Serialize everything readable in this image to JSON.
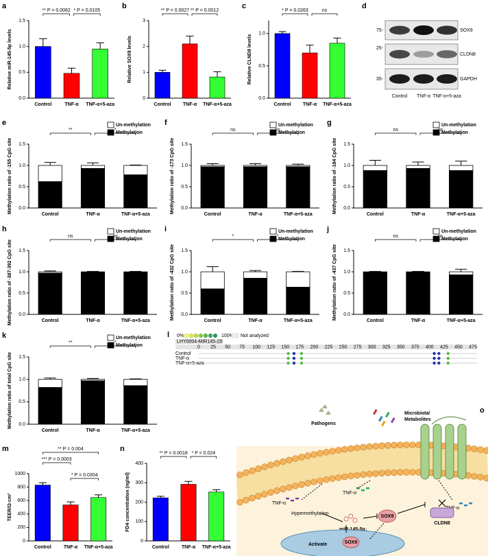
{
  "chart_data": [
    {
      "panel": "a",
      "type": "bar",
      "y_label": "Relative miR-145-5p levels",
      "categories": [
        "Control",
        "TNF-α",
        "TNF-α+5-aza"
      ],
      "values": [
        1.0,
        0.48,
        0.95
      ],
      "errors": [
        0.15,
        0.1,
        0.12
      ],
      "colors": [
        "#0000ff",
        "#ff0000",
        "#33ff33"
      ],
      "ylim": [
        0,
        1.5
      ],
      "yticks": [
        {
          "value": 0,
          "label": "0.0"
        },
        0.5,
        {
          "value": 1,
          "label": "1.0"
        },
        1.5
      ],
      "annotations": [
        "** P = 0.0062",
        "* P = 0.0105"
      ]
    },
    {
      "panel": "b",
      "type": "bar",
      "y_label": "Relative SOX9 levels",
      "categories": [
        "Control",
        "TNF-α",
        "TNF-α+5-aza"
      ],
      "values": [
        1.0,
        2.1,
        0.82
      ],
      "errors": [
        0.08,
        0.3,
        0.2
      ],
      "colors": [
        "#0000ff",
        "#ff0000",
        "#33ff33"
      ],
      "ylim": [
        0,
        3
      ],
      "yticks": [
        0,
        1,
        2,
        3
      ],
      "annotations": [
        "** P = 0.0027",
        "** P = 0.0012"
      ]
    },
    {
      "panel": "c",
      "type": "bar",
      "y_label": "Relative CLND8 levels",
      "categories": [
        "Control",
        "TNF-α",
        "TNF-α+5-aza"
      ],
      "values": [
        1.0,
        0.7,
        0.85
      ],
      "errors": [
        0.03,
        0.12,
        0.08
      ],
      "colors": [
        "#0000ff",
        "#ff0000",
        "#33ff33"
      ],
      "ylim": [
        0,
        1.2
      ],
      "yticks": [
        {
          "value": 0,
          "label": "0.0"
        },
        0.5,
        {
          "value": 1,
          "label": "1.0"
        }
      ],
      "annotations": [
        "* P = 0.0263",
        "ns"
      ]
    },
    {
      "panel": "e",
      "type": "stacked_bar",
      "y_label": "Methylation ratio of -155 CpG site",
      "categories": [
        "Control",
        "TNF-α",
        "TNF-α+5-aza"
      ],
      "series": [
        {
          "name": "Methylation",
          "color": "#000000",
          "values": [
            0.62,
            0.93,
            0.78
          ],
          "errors": [
            0.08,
            0.04,
            0.01
          ]
        },
        {
          "name": "Un-methylation",
          "color": "#ffffff",
          "values": [
            0.38,
            0.07,
            0.22
          ],
          "errors": [
            0.07,
            0.06,
            0.01
          ]
        }
      ],
      "ylim": [
        0,
        1.5
      ],
      "yticks": [
        {
          "value": 0,
          "label": "0.0"
        },
        0.5,
        {
          "value": 1,
          "label": "1.0"
        },
        1.5
      ],
      "annotations": [
        "**",
        "*"
      ]
    },
    {
      "panel": "f",
      "type": "stacked_bar",
      "y_label": "Methylation ratio of -173 CpG site",
      "categories": [
        "Control",
        "TNF-α",
        "TNF-α+5-aza"
      ],
      "series": [
        {
          "name": "Methylation",
          "color": "#000000",
          "values": [
            0.97,
            0.97,
            0.97
          ],
          "errors": [
            0.01,
            0.01,
            0.01
          ]
        },
        {
          "name": "Un-methylation",
          "color": "#ffffff",
          "values": [
            0.03,
            0.03,
            0.03
          ],
          "errors": [
            0.04,
            0.04,
            0.03
          ]
        }
      ],
      "ylim": [
        0,
        1.5
      ],
      "yticks": [
        {
          "value": 0,
          "label": "0.0"
        },
        0.5,
        {
          "value": 1,
          "label": "1.0"
        },
        1.5
      ],
      "annotations": [
        "ns",
        "ns"
      ]
    },
    {
      "panel": "g",
      "type": "stacked_bar",
      "y_label": "Methylation ratio of -184 CpG site",
      "categories": [
        "Control",
        "TNF-α",
        "TNF-α+5-aza"
      ],
      "series": [
        {
          "name": "Methylation",
          "color": "#000000",
          "values": [
            0.88,
            0.93,
            0.88
          ],
          "errors": [
            0.02,
            0.02,
            0.02
          ]
        },
        {
          "name": "Un-methylation",
          "color": "#ffffff",
          "values": [
            0.12,
            0.07,
            0.12
          ],
          "errors": [
            0.12,
            0.08,
            0.1
          ]
        }
      ],
      "ylim": [
        0,
        1.5
      ],
      "yticks": [
        {
          "value": 0,
          "label": "0.0"
        },
        0.5,
        {
          "value": 1,
          "label": "1.0"
        },
        1.5
      ],
      "annotations": [
        "ns",
        "ns"
      ]
    },
    {
      "panel": "h",
      "type": "stacked_bar",
      "y_label": "Methylation ratio of -387-392 CpG site",
      "categories": [
        "Control",
        "TNF-α",
        "TNF-α+5-aza"
      ],
      "series": [
        {
          "name": "Methylation",
          "color": "#000000",
          "values": [
            0.97,
            0.99,
            0.99
          ],
          "errors": [
            0.01,
            0.01,
            0.01
          ]
        },
        {
          "name": "Un-methylation",
          "color": "#ffffff",
          "values": [
            0.03,
            0.01,
            0.01
          ],
          "errors": [
            0.02,
            0.01,
            0.01
          ]
        }
      ],
      "ylim": [
        0,
        1.5
      ],
      "yticks": [
        {
          "value": 0,
          "label": "0.0"
        },
        0.5,
        {
          "value": 1,
          "label": "1.0"
        },
        1.5
      ],
      "annotations": [
        "ns",
        "ns"
      ]
    },
    {
      "panel": "i",
      "type": "stacked_bar",
      "y_label": "Methylation ratio of -432 CpG site",
      "categories": [
        "Control",
        "TNF-α",
        "TNF-α+5-aza"
      ],
      "series": [
        {
          "name": "Methylation",
          "color": "#000000",
          "values": [
            0.6,
            0.85,
            0.64
          ],
          "errors": [
            0.12,
            0.03,
            0.02
          ]
        },
        {
          "name": "Un-methylation",
          "color": "#ffffff",
          "values": [
            0.4,
            0.15,
            0.36
          ],
          "errors": [
            0.12,
            0.03,
            0.01
          ]
        }
      ],
      "ylim": [
        0,
        1.5
      ],
      "yticks": [
        {
          "value": 0,
          "label": "0.0"
        },
        0.5,
        {
          "value": 1,
          "label": "1.0"
        },
        1.5
      ],
      "annotations": [
        "*",
        "*"
      ]
    },
    {
      "panel": "j",
      "type": "stacked_bar",
      "y_label": "Methylation ratio of -437 CpG site",
      "categories": [
        "Control",
        "TNF-α",
        "TNF-α+5-aza"
      ],
      "series": [
        {
          "name": "Methylation",
          "color": "#000000",
          "values": [
            0.99,
            0.99,
            0.93
          ],
          "errors": [
            0.01,
            0.01,
            0.02
          ]
        },
        {
          "name": "Un-methylation",
          "color": "#ffffff",
          "values": [
            0.01,
            0.01,
            0.07
          ],
          "errors": [
            0.01,
            0.01,
            0.06
          ]
        }
      ],
      "ylim": [
        0,
        1.5
      ],
      "yticks": [
        {
          "value": 0,
          "label": "0.0"
        },
        0.5,
        {
          "value": 1,
          "label": "1.0"
        },
        1.5
      ],
      "annotations": [
        "ns",
        "ns"
      ]
    },
    {
      "panel": "k",
      "type": "stacked_bar",
      "y_label": "Methylation ratio of total CpG site",
      "categories": [
        "Control",
        "TNF-α",
        "TNF-α+5-aza"
      ],
      "series": [
        {
          "name": "Methylation",
          "color": "#000000",
          "values": [
            0.82,
            0.97,
            0.86
          ],
          "errors": [
            0.02,
            0.01,
            0.01
          ]
        },
        {
          "name": "Un-methylation",
          "color": "#ffffff",
          "values": [
            0.18,
            0.03,
            0.14
          ],
          "errors": [
            0.03,
            0.02,
            0.01
          ]
        }
      ],
      "ylim": [
        0,
        1.5
      ],
      "yticks": [
        {
          "value": 0,
          "label": "0.0"
        },
        0.5,
        {
          "value": 1,
          "label": "1.0"
        },
        1.5
      ],
      "annotations": [
        "**",
        "*"
      ]
    },
    {
      "panel": "m",
      "type": "bar",
      "y_label": "TEER/Ω·cm²",
      "categories": [
        "Control",
        "TNF-α",
        "TNF-α+5-aza"
      ],
      "values": [
        830,
        535,
        645
      ],
      "errors": [
        35,
        45,
        40
      ],
      "colors": [
        "#0000ff",
        "#ff0000",
        "#33ff33"
      ],
      "ylim": [
        0,
        1000
      ],
      "yticks": [
        0,
        200,
        400,
        600,
        800,
        1000
      ],
      "annotations": [
        "** P = 0.004",
        "*** P = 0.0003",
        "* P = 0.0304"
      ]
    },
    {
      "panel": "n",
      "type": "bar",
      "y_label": "FD4 concentration (ng/ml)",
      "categories": [
        "Control",
        "TNF-α",
        "TNF-α+5-aza"
      ],
      "values": [
        222,
        292,
        252
      ],
      "errors": [
        8,
        15,
        12
      ],
      "colors": [
        "#0000ff",
        "#ff0000",
        "#33ff33"
      ],
      "ylim": [
        0,
        400
      ],
      "yticks": [
        0,
        100,
        200,
        300,
        400
      ],
      "annotations": [
        "** P = 0.0018",
        "* P = 0.024"
      ]
    }
  ],
  "blot": {
    "panel": "d",
    "markers": [
      "75-",
      "25-",
      "35-"
    ],
    "proteins": [
      "SOX9",
      "CLDN8",
      "GAPDH"
    ],
    "lanes": [
      "Control",
      "TNF-α",
      "TNF-α+5-aza"
    ]
  },
  "methylation_map": {
    "panel": "l",
    "legend": [
      "0%",
      "100%",
      "Not analyzed"
    ],
    "title": "LHY0004-MIR145-29",
    "positions": [
      0,
      25,
      50,
      75,
      100,
      125,
      150,
      175,
      200,
      225,
      250,
      275,
      300,
      325,
      350,
      375,
      400,
      425,
      450,
      475
    ],
    "rows": [
      "Control",
      "TNF-α",
      "TNF-α+5-aza"
    ]
  },
  "diagram": {
    "panel": "o",
    "pathogens": "Pathogens",
    "microbiota": [
      "Microbiota/",
      "Metabolites"
    ],
    "tnf": [
      "TNF-α",
      "TNF-α",
      "TNF-α"
    ],
    "hypermethylation": "Hypermethylation",
    "mir": "miR-145-5p↓",
    "sox9": [
      "SOX9",
      "SOX9"
    ],
    "cldn8": "CLDN8",
    "activate": "Activate"
  }
}
